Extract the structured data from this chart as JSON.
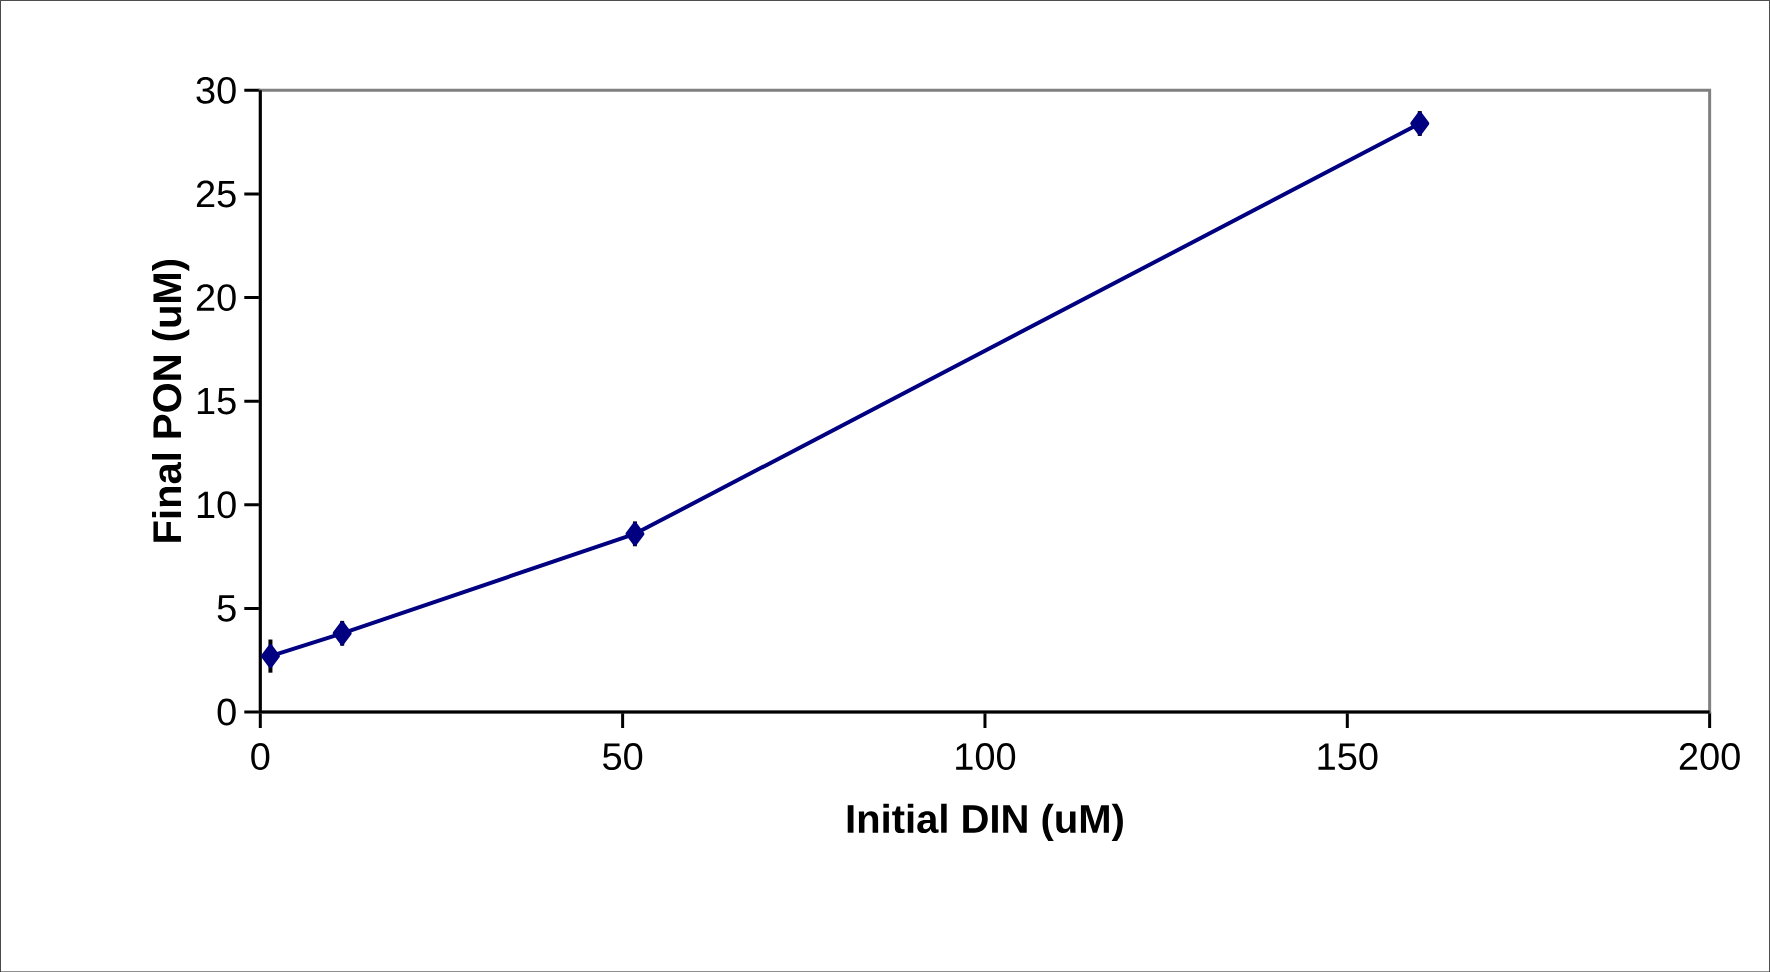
{
  "chart_data": {
    "type": "line",
    "xlabel": "Initial DIN (uM)",
    "ylabel": "Final PON (uM)",
    "x": [
      1.4,
      11.3,
      51.7,
      160
    ],
    "series": [
      {
        "color": "#000080",
        "values": [
          2.7,
          3.8,
          8.6,
          28.4
        ],
        "errors": [
          0.8,
          0.6,
          0.6,
          0.6
        ]
      }
    ],
    "xlim": [
      0,
      200
    ],
    "xticks": [
      0,
      50,
      100,
      150,
      200
    ],
    "ylim": [
      0,
      30
    ],
    "yticks": [
      0,
      5,
      10,
      15,
      20,
      25,
      30
    ],
    "marker": "diamond",
    "line_style": "solid"
  }
}
